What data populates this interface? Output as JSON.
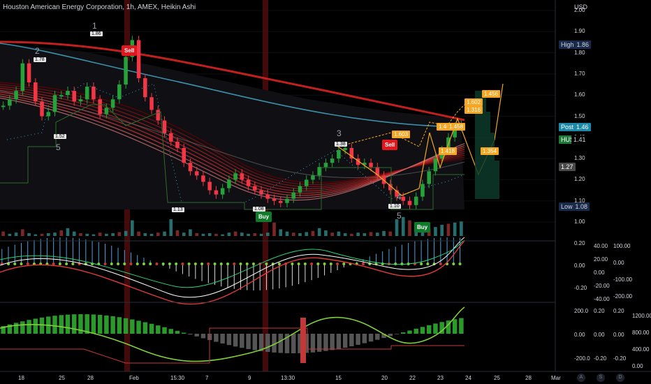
{
  "header": {
    "title": "Houston American Energy Corporation, 1h, AMEX, Heikin Ashi",
    "currency": "USD"
  },
  "colors": {
    "background": "#000000",
    "up": "#26a23a",
    "down": "#f23645",
    "ema_red": "#c21f1f",
    "ema_teal": "#3b8fa8",
    "buy": "#0f7a2a",
    "sell": "#e0181e",
    "fib": "#f5a623"
  },
  "price_tags": [
    {
      "key": "High",
      "value": "1.86",
      "bg": "#1a2a4a",
      "fg": "#d1d4dc"
    },
    {
      "key": "Post",
      "value": "1.46",
      "bg": "#1e88a8",
      "fg": "#ffffff"
    },
    {
      "key": "HUSA",
      "value": "",
      "bg": "#1f7a3a",
      "fg": "#ffffff"
    },
    {
      "key": "",
      "value": "1.41",
      "bg": "#000000",
      "fg": "#d1d4dc"
    },
    {
      "key": "",
      "value": "1.27",
      "bg": "#4a4a4a",
      "fg": "#ffffff"
    },
    {
      "key": "Low",
      "value": "1.08",
      "bg": "#1a2a4a",
      "fg": "#d1d4dc"
    }
  ],
  "price_scale": [
    "2.00",
    "1.90",
    "1.80",
    "1.70",
    "1.60",
    "1.50",
    "1.40",
    "1.30",
    "1.20",
    "1.10",
    "1.00"
  ],
  "pane2_scale": {
    "right1": [
      "0.20",
      "0.00",
      "-0.20"
    ],
    "right2": [
      "40.00",
      "20.00",
      "0.00",
      "-20.00",
      "-40.00"
    ],
    "right3": [
      "100.00",
      "0.00",
      "-100.00",
      "-200.00"
    ]
  },
  "pane3_scale": {
    "right1": [
      "200.0",
      "0.00",
      "-200.0"
    ],
    "right2": [
      "0.20",
      "0.00",
      "-0.20"
    ],
    "right3": [
      "0.20",
      "0.00",
      "-0.20"
    ],
    "right4": [
      "1200.00",
      "800.00",
      "400.00",
      "0.00"
    ]
  },
  "x_axis": [
    "18",
    "25",
    "28",
    "Feb",
    "15:30",
    "7",
    "9",
    "13:30",
    "15",
    "20",
    "22",
    "23",
    "24",
    "25",
    "28",
    "Mar"
  ],
  "corner_icons": [
    "A",
    "S",
    "D"
  ],
  "signals": [
    {
      "type": "sell",
      "label": "Sell"
    },
    {
      "type": "buy",
      "label": "Buy"
    },
    {
      "type": "sell",
      "label": "Sell"
    },
    {
      "type": "buy",
      "label": "Buy"
    }
  ],
  "wave_numbers": [
    "1",
    "2",
    "3",
    "4",
    "5",
    "5"
  ],
  "pivots": [
    "1.78",
    "1.86",
    "1.52",
    "1.13",
    "1.08",
    "1.38",
    "1.10"
  ],
  "fib_labels": [
    "1.603",
    "1.46",
    "1.602",
    "1.316",
    "1.456",
    "1.354",
    "1.418",
    "1.458"
  ],
  "chart_data": {
    "type": "candlestick",
    "title": "Houston American Energy Corporation, 1h, AMEX, Heikin Ashi",
    "ylim": [
      1.0,
      2.0
    ],
    "series": [
      {
        "name": "HUSA",
        "values": [
          1.55,
          1.58,
          1.62,
          1.75,
          1.66,
          1.57,
          1.5,
          1.52,
          1.6,
          1.6,
          1.62,
          1.57,
          1.58,
          1.64,
          1.58,
          1.51,
          1.54,
          1.58,
          1.65,
          1.78,
          1.86,
          1.68,
          1.59,
          1.53,
          1.48,
          1.42,
          1.38,
          1.35,
          1.28,
          1.24,
          1.22,
          1.19,
          1.15,
          1.13,
          1.16,
          1.2,
          1.23,
          1.2,
          1.17,
          1.15,
          1.13,
          1.11,
          1.1,
          1.09,
          1.11,
          1.14,
          1.17,
          1.2,
          1.22,
          1.26,
          1.28,
          1.3,
          1.34,
          1.35,
          1.3,
          1.27,
          1.28,
          1.26,
          1.22,
          1.18,
          1.15,
          1.12,
          1.1,
          1.08,
          1.12,
          1.18,
          1.24,
          1.3,
          1.34,
          1.4,
          1.45,
          1.46
        ]
      }
    ],
    "high": 1.86,
    "low": 1.08,
    "last": 1.46
  }
}
